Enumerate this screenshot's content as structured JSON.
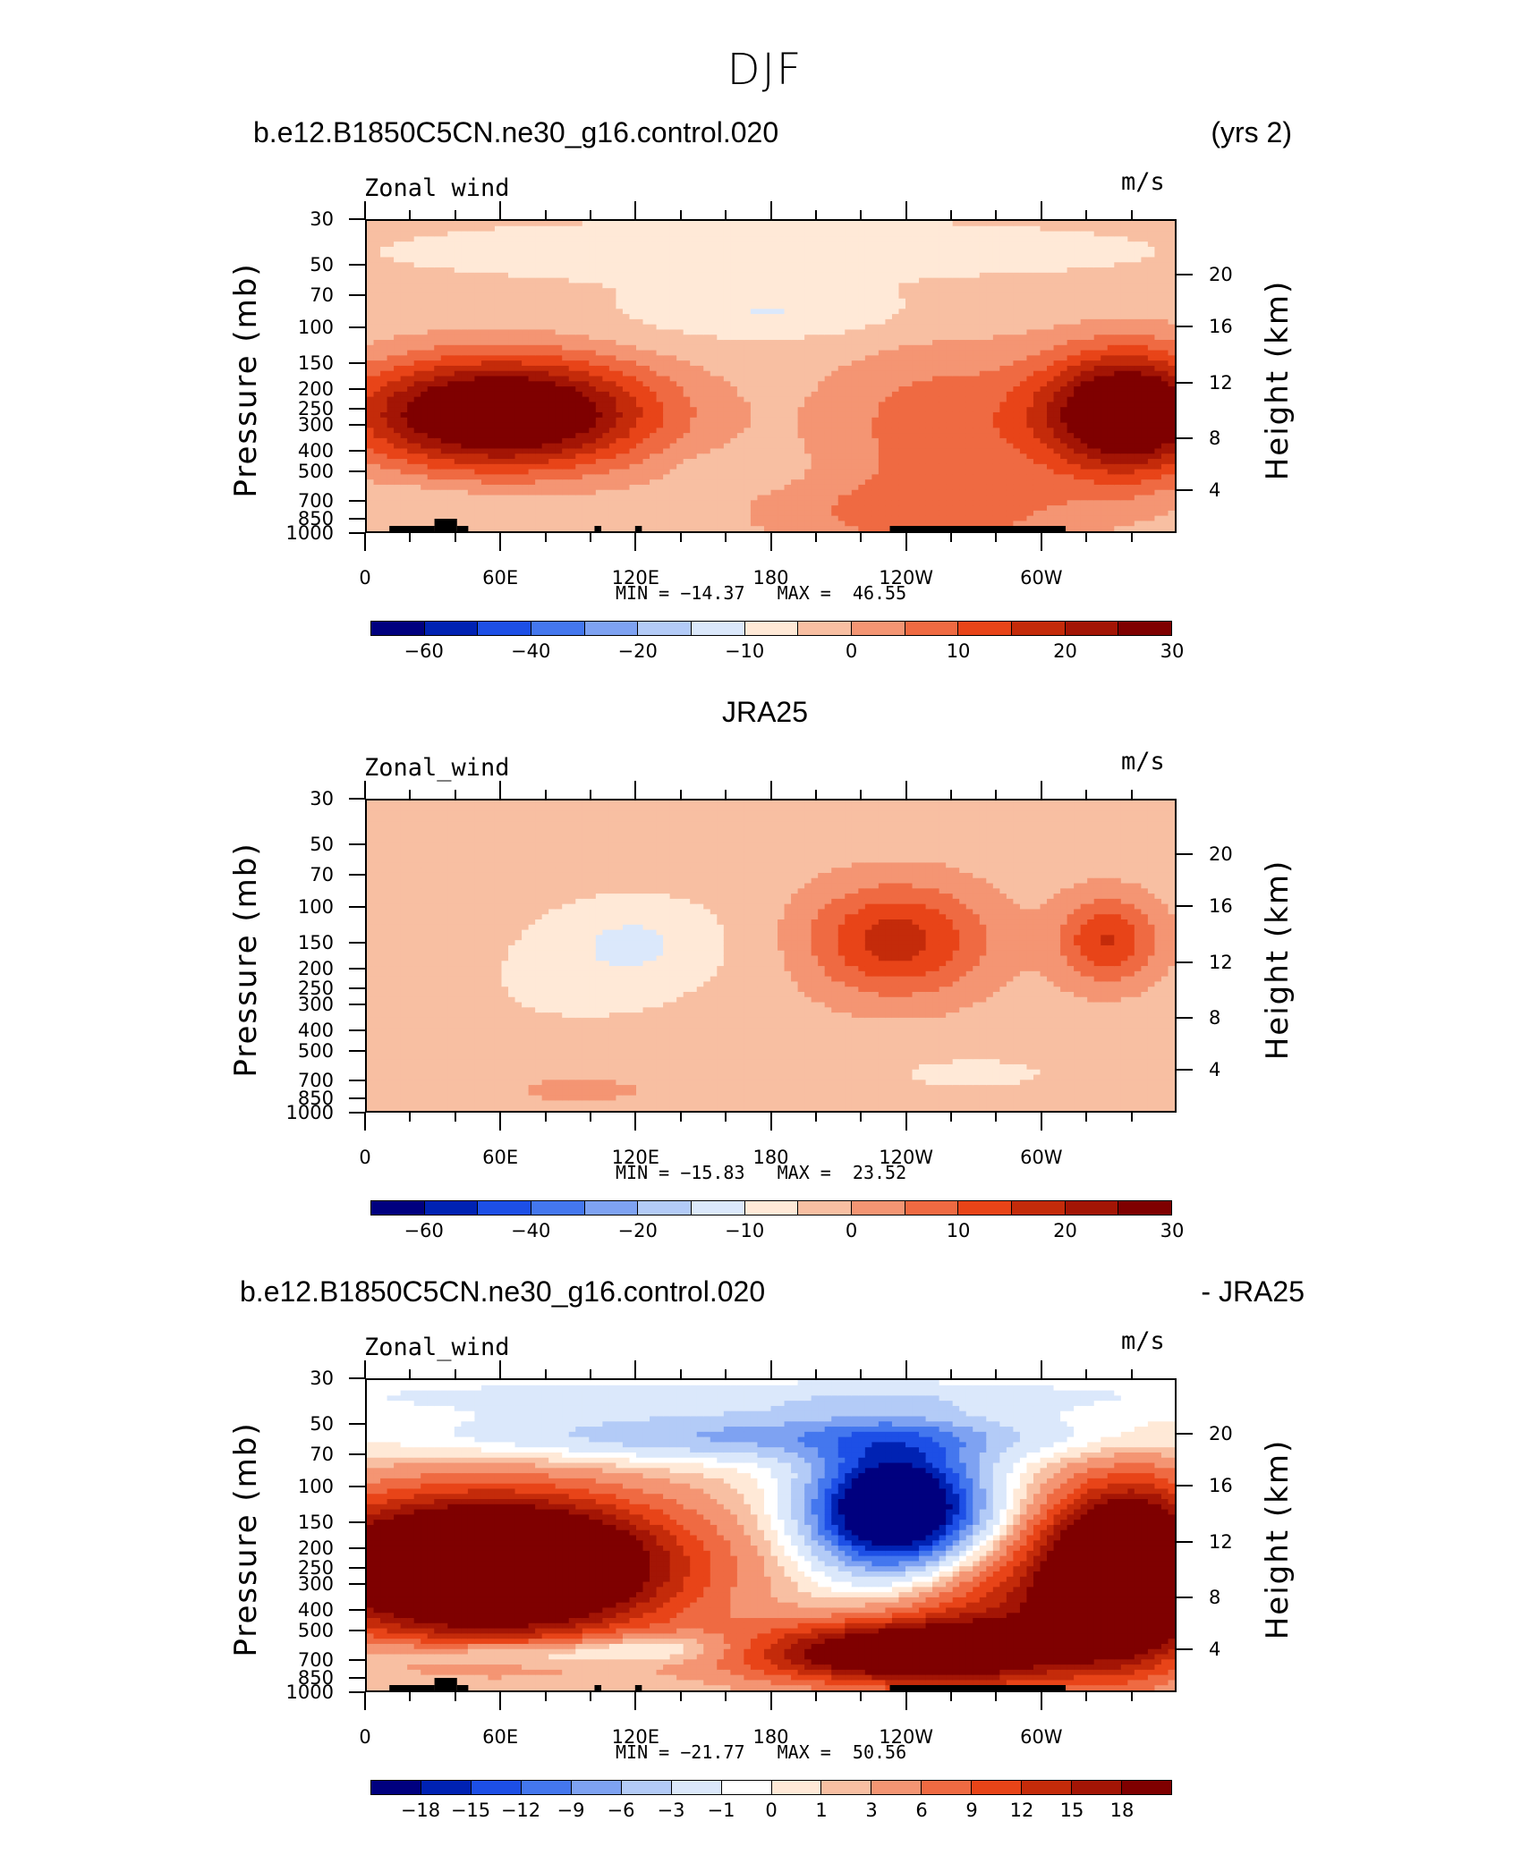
{
  "main_title": "DJF",
  "panels": [
    {
      "title_left": "b.e12.B1850C5CN.ne30_g16.control.020",
      "title_right": "(yrs 2)",
      "title_center": "",
      "field_label": "Zonal wind",
      "units": "m/s",
      "y_title": "Pressure (mb)",
      "y2_title": "Height (km)",
      "min_max": "MIN = −14.37   MAX =  46.55"
    },
    {
      "title_left": "",
      "title_right": "",
      "title_center": "JRA25",
      "field_label": "Zonal_wind",
      "units": "m/s",
      "y_title": "Pressure (mb)",
      "y2_title": "Height (km)",
      "min_max": "MIN = −15.83   MAX =  23.52"
    },
    {
      "title_left": "b.e12.B1850C5CN.ne30_g16.control.020",
      "title_right": "- JRA25",
      "title_center": "",
      "field_label": "Zonal_wind",
      "units": "m/s",
      "y_title": "Pressure (mb)",
      "y2_title": "Height (km)",
      "min_max": "MIN = −21.77   MAX =  50.56"
    }
  ],
  "chart_data": [
    {
      "type": "contour",
      "title": "b.e12.B1850C5CN.ne30_g16.control.020 (yrs 2)",
      "variable": "Zonal wind",
      "units": "m/s",
      "x_ticks": [
        "0",
        "60E",
        "120E",
        "180",
        "120W",
        "60W"
      ],
      "x_range_deg": [
        0,
        360
      ],
      "y_pressure_ticks": [
        30,
        50,
        70,
        100,
        150,
        200,
        250,
        300,
        400,
        500,
        700,
        850,
        1000
      ],
      "y_height_ticks_km": [
        4,
        8,
        12,
        16,
        20
      ],
      "min": -14.37,
      "max": 46.55,
      "colorbar_labels": [
        "−60",
        "−40",
        "−20",
        "−10",
        "0",
        "10",
        "20",
        "30"
      ],
      "features": [
        {
          "name": "jet_eastern_hemisphere",
          "lon_center": 60,
          "p_center": 200,
          "value": ">35"
        },
        {
          "name": "jet_western_hemisphere",
          "lon_center": 330,
          "p_center": 200,
          "value": ">35"
        },
        {
          "name": "easterlies_upper",
          "lon_center": 180,
          "p_center": 70,
          "value": -10
        }
      ]
    },
    {
      "type": "contour",
      "title": "JRA25",
      "variable": "Zonal_wind",
      "units": "m/s",
      "x_ticks": [
        "0",
        "60E",
        "120E",
        "180",
        "120W",
        "60W"
      ],
      "x_range_deg": [
        0,
        360
      ],
      "y_pressure_ticks": [
        30,
        50,
        70,
        100,
        150,
        200,
        250,
        300,
        400,
        500,
        700,
        850,
        1000
      ],
      "y_height_ticks_km": [
        4,
        8,
        12,
        16,
        20
      ],
      "min": -15.83,
      "max": 23.52,
      "colorbar_labels": [
        "−60",
        "−40",
        "−20",
        "−10",
        "0",
        "10",
        "20",
        "30"
      ],
      "features": [
        {
          "name": "westerly_max_pacific",
          "lon_center": 235,
          "p_center": 150,
          "value": 23.5
        },
        {
          "name": "westerly_max_atlantic",
          "lon_center": 330,
          "p_center": 150,
          "value": 20
        },
        {
          "name": "easterly_min_indo",
          "lon_center": 120,
          "p_center": 150,
          "value": -15
        }
      ]
    },
    {
      "type": "contour",
      "title": "b.e12.B1850C5CN.ne30_g16.control.020 - JRA25",
      "variable": "Zonal_wind",
      "units": "m/s",
      "x_ticks": [
        "0",
        "60E",
        "120E",
        "180",
        "120W",
        "60W"
      ],
      "x_range_deg": [
        0,
        360
      ],
      "y_pressure_ticks": [
        30,
        50,
        70,
        100,
        150,
        200,
        250,
        300,
        400,
        500,
        700,
        850,
        1000
      ],
      "y_height_ticks_km": [
        4,
        8,
        12,
        16,
        20
      ],
      "min": -21.77,
      "max": 50.56,
      "colorbar_labels": [
        "−18",
        "−15",
        "−12",
        "−9",
        "−6",
        "−3",
        "−1",
        "0",
        "1",
        "3",
        "6",
        "9",
        "12",
        "15",
        "18"
      ],
      "features": [
        {
          "name": "positive_bias_east",
          "lon_center": 60,
          "p_center": 200,
          "value": ">18"
        },
        {
          "name": "positive_bias_west",
          "lon_center": 330,
          "p_center": 250,
          "value": ">18"
        },
        {
          "name": "negative_bias_central_pacific",
          "lon_center": 235,
          "p_center": 120,
          "value": "<-18"
        }
      ]
    }
  ],
  "colors": {
    "scale_standard": [
      "#00007f",
      "#0022b3",
      "#1d4fe6",
      "#4477ee",
      "#7ea2f2",
      "#b3cbf7",
      "#dbe8fb",
      "#ffe9d7",
      "#f8bfa2",
      "#f49573",
      "#ef6a42",
      "#e84418",
      "#c42b0a",
      "#a31505",
      "#7f0000"
    ],
    "scale_diff": [
      "#00007f",
      "#0022b3",
      "#1d4fe6",
      "#4477ee",
      "#7ea2f2",
      "#b3cbf7",
      "#dbe8fb",
      "#ffffff",
      "#ffe9d7",
      "#f8bfa2",
      "#f49573",
      "#ef6a42",
      "#e84418",
      "#c42b0a",
      "#a31505",
      "#7f0000"
    ],
    "topography": "#000000"
  }
}
